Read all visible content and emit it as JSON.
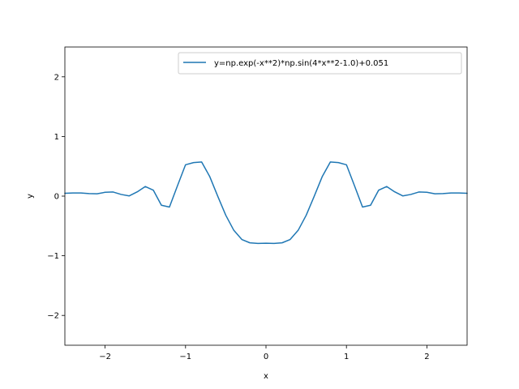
{
  "chart_data": {
    "type": "line",
    "title": "",
    "xlabel": "x",
    "ylabel": "y",
    "xlim": [
      -2.5,
      2.5
    ],
    "ylim": [
      -2.5,
      2.5
    ],
    "x_ticks": [
      -2,
      -1,
      0,
      1,
      2
    ],
    "x_tick_labels": [
      "−2",
      "−1",
      "0",
      "1",
      "2"
    ],
    "y_ticks": [
      -2,
      -1,
      0,
      1,
      2
    ],
    "y_tick_labels": [
      "−2",
      "−1",
      "0",
      "1",
      "2"
    ],
    "grid": false,
    "legend_position": "top-right",
    "series": [
      {
        "name": "y=np.exp(-x**2)*np.sin(4*x**2-1.0)+0.051",
        "color": "#1f77b4",
        "x": [
          -2.5,
          -2.4,
          -2.3,
          -2.2,
          -2.1,
          -2.0,
          -1.9,
          -1.8,
          -1.7,
          -1.6,
          -1.5,
          -1.4,
          -1.3,
          -1.2,
          -1.1,
          -1.0,
          -0.9,
          -0.8,
          -0.7,
          -0.6,
          -0.5,
          -0.4,
          -0.3,
          -0.2,
          -0.1,
          0.0,
          0.1,
          0.2,
          0.3,
          0.4,
          0.5,
          0.6,
          0.7,
          0.8,
          0.9,
          1.0,
          1.1,
          1.2,
          1.3,
          1.4,
          1.5,
          1.6,
          1.7,
          1.8,
          1.9,
          2.0,
          2.1,
          2.2,
          2.3,
          2.4,
          2.5
        ],
        "y": [
          0.048,
          0.052,
          0.053,
          0.043,
          0.039,
          0.064,
          0.069,
          0.028,
          0.004,
          0.072,
          0.161,
          0.099,
          -0.153,
          -0.183,
          0.175,
          0.526,
          0.562,
          0.573,
          0.33,
          -0.001,
          -0.32,
          -0.573,
          -0.727,
          -0.783,
          -0.793,
          -0.79,
          -0.793,
          -0.783,
          -0.727,
          -0.573,
          -0.32,
          -0.001,
          0.33,
          0.573,
          0.562,
          0.526,
          0.175,
          -0.183,
          -0.153,
          0.099,
          0.161,
          0.072,
          0.004,
          0.028,
          0.069,
          0.064,
          0.039,
          0.043,
          0.053,
          0.052,
          0.048
        ]
      }
    ]
  }
}
